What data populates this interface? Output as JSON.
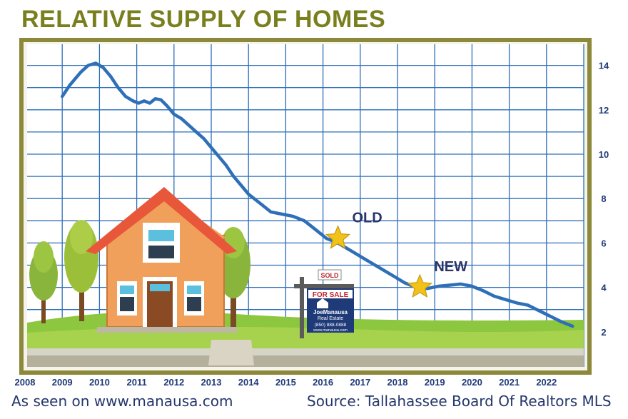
{
  "title": "RELATIVE SUPPLY OF HOMES",
  "footer": {
    "left": "As seen on www.manausa.com",
    "right": "Source: Tallahassee Board Of Realtors MLS"
  },
  "annotations": [
    {
      "label": "OLD",
      "x": 2016.4,
      "y": 6.6
    },
    {
      "label": "NEW",
      "x": 2018.6,
      "y": 4.4
    }
  ],
  "sign": {
    "top_label": "SOLD",
    "main_label": "FOR SALE",
    "brand_line1": "JoeManausa",
    "brand_line2": "Real Estate",
    "phone": "(850) 888-0888",
    "url": "www.manausa.com"
  },
  "colors": {
    "line": "#2e6fb8",
    "grid": "#2e6fb8",
    "frame": "#8c8a3a",
    "title": "#7a7f1e",
    "tick_labels": "#1f3a78",
    "annotation_text": "#2b3468",
    "star": "#f2c21b"
  },
  "chart_data": {
    "type": "line",
    "title": "RELATIVE SUPPLY OF HOMES",
    "xlabel": "",
    "ylabel": "",
    "x_ticks": [
      "2008",
      "2009",
      "2010",
      "2011",
      "2012",
      "2013",
      "2014",
      "2015",
      "2016",
      "2017",
      "2018",
      "2019",
      "2020",
      "2021",
      "2022"
    ],
    "y_ticks": [
      "2",
      "4",
      "6",
      "8",
      "10",
      "12",
      "14"
    ],
    "xlim": [
      2008,
      2023
    ],
    "ylim": [
      0,
      15
    ],
    "y_axis_side": "right",
    "grid": true,
    "legend": "none",
    "series": [
      {
        "x": [
          2009.0,
          2009.2,
          2009.5,
          2009.7,
          2009.9,
          2010.1,
          2010.3,
          2010.5,
          2010.7,
          2010.9,
          2011.05,
          2011.2,
          2011.35,
          2011.5,
          2011.65,
          2011.8,
          2012.0,
          2012.2,
          2012.4,
          2012.6,
          2012.8,
          2013.0,
          2013.2,
          2013.4,
          2013.6,
          2013.8,
          2014.0,
          2014.3,
          2014.6,
          2014.9,
          2015.2,
          2015.5,
          2015.8,
          2016.1,
          2016.4,
          2016.7,
          2017.0,
          2017.3,
          2017.6,
          2017.9,
          2018.2,
          2018.5,
          2018.8,
          2019.1,
          2019.4,
          2019.7,
          2020.0,
          2020.3,
          2020.6,
          2020.9,
          2021.2,
          2021.5,
          2021.8,
          2022.1,
          2022.4,
          2022.7
        ],
        "y": [
          12.6,
          13.1,
          13.7,
          14.0,
          14.1,
          13.9,
          13.5,
          13.0,
          12.6,
          12.4,
          12.3,
          12.4,
          12.3,
          12.5,
          12.45,
          12.2,
          11.8,
          11.6,
          11.3,
          11.0,
          10.7,
          10.3,
          9.9,
          9.5,
          9.0,
          8.6,
          8.2,
          7.8,
          7.4,
          7.3,
          7.2,
          7.0,
          6.6,
          6.2,
          6.0,
          5.7,
          5.4,
          5.1,
          4.8,
          4.5,
          4.2,
          4.0,
          3.95,
          4.05,
          4.1,
          4.15,
          4.05,
          3.85,
          3.6,
          3.45,
          3.3,
          3.2,
          2.95,
          2.7,
          2.45,
          2.25
        ]
      }
    ]
  }
}
